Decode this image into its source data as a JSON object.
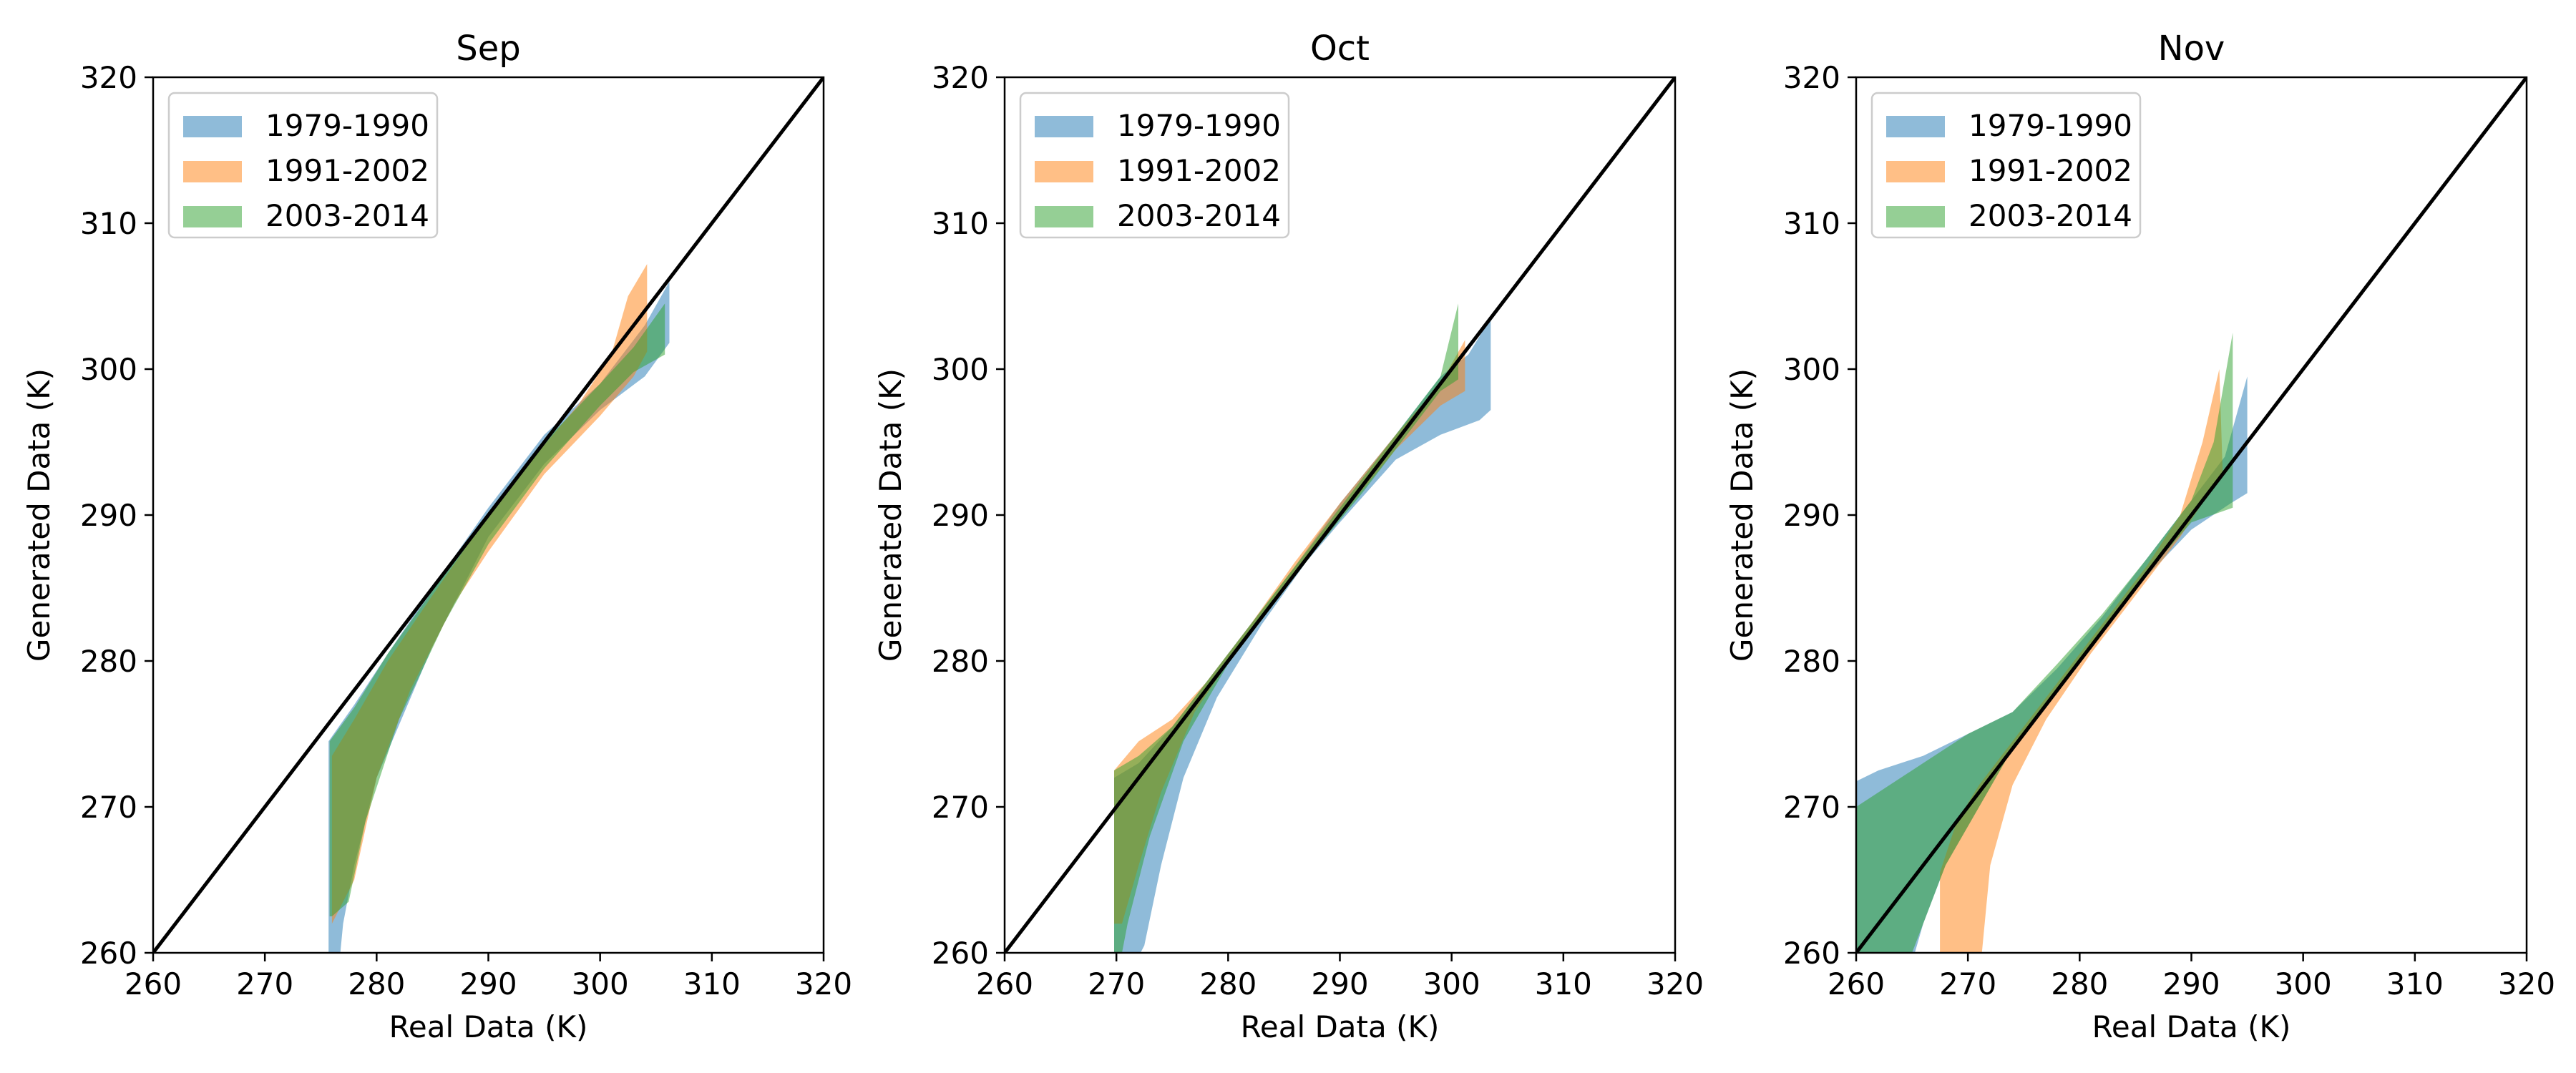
{
  "figure": {
    "xlabel": "Real Data (K)",
    "ylabel": "Generated Data (K)"
  },
  "colors": {
    "1979-1990": "#1f77b4",
    "1991-2002": "#ff7f0e",
    "2003-2014": "#2ca02c",
    "identity_line": "#000000"
  },
  "chart_data": [
    {
      "type": "area",
      "title": "Sep",
      "xlabel": "Real Data (K)",
      "ylabel": "Generated Data (K)",
      "xlim": [
        260,
        320
      ],
      "ylim": [
        260,
        320
      ],
      "xticks": [
        260,
        270,
        280,
        290,
        300,
        310,
        320
      ],
      "yticks": [
        260,
        270,
        280,
        290,
        300,
        310,
        320
      ],
      "legend": "top-left",
      "reference_line": "y = x",
      "series": [
        {
          "name": "1979-1990",
          "upper": [
            [
              275.7,
              258
            ],
            [
              275.7,
              274.5
            ],
            [
              278,
              277
            ],
            [
              281,
              280.5
            ],
            [
              285,
              285
            ],
            [
              290,
              290.5
            ],
            [
              295,
              295.5
            ],
            [
              300,
              299
            ],
            [
              304,
              303
            ],
            [
              306.2,
              306
            ]
          ],
          "lower": [
            [
              276.5,
              258
            ],
            [
              277,
              262
            ],
            [
              278,
              266
            ],
            [
              280,
              272
            ],
            [
              285,
              281
            ],
            [
              290,
              288.5
            ],
            [
              295,
              293.5
            ],
            [
              300,
              297.2
            ],
            [
              304,
              299.5
            ],
            [
              306.2,
              301.8
            ]
          ]
        },
        {
          "name": "1991-2002",
          "upper": [
            [
              276,
              262
            ],
            [
              276,
              273.5
            ],
            [
              278,
              276
            ],
            [
              281,
              280
            ],
            [
              285,
              284.5
            ],
            [
              290,
              290
            ],
            [
              295,
              294.8
            ],
            [
              298,
              297.5
            ],
            [
              301,
              301
            ],
            [
              302.5,
              305
            ],
            [
              304.2,
              307.2
            ]
          ],
          "lower": [
            [
              276,
              262
            ],
            [
              278,
              265
            ],
            [
              280,
              272
            ],
            [
              283,
              278
            ],
            [
              287,
              284
            ],
            [
              290,
              287.5
            ],
            [
              295,
              292.8
            ],
            [
              300,
              296.8
            ],
            [
              303,
              299.5
            ],
            [
              304.2,
              301.2
            ]
          ]
        },
        {
          "name": "2003-2014",
          "upper": [
            [
              275.8,
              262.5
            ],
            [
              275.8,
              274.5
            ],
            [
              278,
              276.8
            ],
            [
              281,
              280.5
            ],
            [
              285,
              284.8
            ],
            [
              290,
              290.2
            ],
            [
              295,
              295
            ],
            [
              300,
              299
            ],
            [
              303,
              301.5
            ],
            [
              305.8,
              304.5
            ]
          ],
          "lower": [
            [
              276,
              262.5
            ],
            [
              277.5,
              263.5
            ],
            [
              279,
              269
            ],
            [
              282,
              276
            ],
            [
              286,
              282.5
            ],
            [
              290,
              288
            ],
            [
              295,
              293.2
            ],
            [
              300,
              297.5
            ],
            [
              303,
              299.8
            ],
            [
              305.8,
              301
            ]
          ]
        }
      ]
    },
    {
      "type": "area",
      "title": "Oct",
      "xlabel": "Real Data (K)",
      "ylabel": "Generated Data (K)",
      "xlim": [
        260,
        320
      ],
      "ylim": [
        260,
        320
      ],
      "xticks": [
        260,
        270,
        280,
        290,
        300,
        310,
        320
      ],
      "yticks": [
        260,
        270,
        280,
        290,
        300,
        310,
        320
      ],
      "legend": "top-left",
      "reference_line": "y = x",
      "series": [
        {
          "name": "1979-1990",
          "upper": [
            [
              269.8,
              258
            ],
            [
              269.8,
              272
            ],
            [
              272,
              273
            ],
            [
              275,
              275.5
            ],
            [
              278,
              278.5
            ],
            [
              282,
              282.5
            ],
            [
              286,
              286.5
            ],
            [
              290,
              290.8
            ],
            [
              295,
              295.5
            ],
            [
              299,
              299.5
            ],
            [
              301.5,
              301
            ],
            [
              303.5,
              303.5
            ]
          ],
          "lower": [
            [
              270.8,
              258
            ],
            [
              272.5,
              260.5
            ],
            [
              274,
              266
            ],
            [
              276,
              272
            ],
            [
              279,
              277.5
            ],
            [
              283,
              282.5
            ],
            [
              287,
              286.8
            ],
            [
              290,
              289.5
            ],
            [
              295,
              293.8
            ],
            [
              299,
              295.5
            ],
            [
              302.5,
              296.5
            ],
            [
              303.5,
              297.2
            ]
          ]
        },
        {
          "name": "1991-2002",
          "upper": [
            [
              269.8,
              262
            ],
            [
              269.8,
              272.5
            ],
            [
              272,
              274.5
            ],
            [
              275,
              276
            ],
            [
              278,
              278.5
            ],
            [
              282,
              282.5
            ],
            [
              286,
              286.8
            ],
            [
              290,
              290.8
            ],
            [
              295,
              295.5
            ],
            [
              299,
              299
            ],
            [
              301.2,
              302
            ]
          ],
          "lower": [
            [
              270.5,
              262
            ],
            [
              272,
              266
            ],
            [
              274,
              271
            ],
            [
              277,
              276.5
            ],
            [
              281,
              281
            ],
            [
              285,
              285
            ],
            [
              290,
              289.8
            ],
            [
              295,
              294.5
            ],
            [
              299,
              297.5
            ],
            [
              301.2,
              298.5
            ]
          ]
        },
        {
          "name": "2003-2014",
          "upper": [
            [
              269.8,
              258
            ],
            [
              269.8,
              272.5
            ],
            [
              272,
              273.5
            ],
            [
              275,
              275.5
            ],
            [
              278,
              278.5
            ],
            [
              282,
              282.5
            ],
            [
              286,
              286.5
            ],
            [
              290,
              290.5
            ],
            [
              295,
              295.5
            ],
            [
              299,
              299.5
            ],
            [
              300.6,
              304.5
            ]
          ],
          "lower": [
            [
              270,
              258
            ],
            [
              271,
              262
            ],
            [
              273,
              268
            ],
            [
              276,
              274.5
            ],
            [
              280,
              279.8
            ],
            [
              284,
              283.8
            ],
            [
              288,
              287.8
            ],
            [
              292,
              291.5
            ],
            [
              296,
              295.5
            ],
            [
              299,
              298.5
            ],
            [
              300.6,
              299.3
            ]
          ]
        }
      ]
    },
    {
      "type": "area",
      "title": "Nov",
      "xlabel": "Real Data (K)",
      "ylabel": "Generated Data (K)",
      "xlim": [
        260,
        320
      ],
      "ylim": [
        260,
        320
      ],
      "xticks": [
        260,
        270,
        280,
        290,
        300,
        310,
        320
      ],
      "yticks": [
        260,
        270,
        280,
        290,
        300,
        310,
        320
      ],
      "legend": "top-left",
      "reference_line": "y = x",
      "series": [
        {
          "name": "1979-1990",
          "upper": [
            [
              258,
              271
            ],
            [
              262,
              272.5
            ],
            [
              266,
              273.5
            ],
            [
              270,
              275
            ],
            [
              274,
              276.5
            ],
            [
              278,
              279.5
            ],
            [
              282,
              283
            ],
            [
              286,
              287
            ],
            [
              290,
              291
            ],
            [
              293,
              294
            ],
            [
              295,
              299.5
            ]
          ],
          "lower": [
            [
              258,
              258
            ],
            [
              262,
              258
            ],
            [
              264.5,
              258
            ],
            [
              266,
              262
            ],
            [
              268,
              266
            ],
            [
              271,
              270
            ],
            [
              274,
              274
            ],
            [
              278,
              278
            ],
            [
              282,
              282
            ],
            [
              286,
              285.8
            ],
            [
              290,
              289
            ],
            [
              293.5,
              290.8
            ],
            [
              295,
              291.5
            ]
          ]
        },
        {
          "name": "1991-2002",
          "upper": [
            [
              267.5,
              258
            ],
            [
              267.5,
              265.5
            ],
            [
              269,
              269
            ],
            [
              271,
              271.5
            ],
            [
              274,
              274.5
            ],
            [
              278,
              278.5
            ],
            [
              282,
              282.5
            ],
            [
              286,
              286.5
            ],
            [
              289,
              290
            ],
            [
              291,
              295
            ],
            [
              292.5,
              300
            ]
          ],
          "lower": [
            [
              271,
              258
            ],
            [
              272,
              266
            ],
            [
              274,
              271.5
            ],
            [
              277,
              276
            ],
            [
              281,
              280.5
            ],
            [
              285,
              284.5
            ],
            [
              289,
              288.5
            ],
            [
              292,
              292
            ],
            [
              292.8,
              293
            ]
          ]
        },
        {
          "name": "2003-2014",
          "upper": [
            [
              258,
              258
            ],
            [
              258,
              269
            ],
            [
              262,
              271
            ],
            [
              266,
              273
            ],
            [
              270,
              275
            ],
            [
              274,
              276.5
            ],
            [
              278,
              279.8
            ],
            [
              282,
              283.2
            ],
            [
              286,
              287
            ],
            [
              290,
              291
            ],
            [
              292,
              295
            ],
            [
              293.7,
              302.5
            ]
          ],
          "lower": [
            [
              258,
              258
            ],
            [
              264,
              258
            ],
            [
              266,
              262
            ],
            [
              268,
              266
            ],
            [
              271,
              270
            ],
            [
              274,
              274
            ],
            [
              278,
              278
            ],
            [
              282,
              282
            ],
            [
              286,
              286
            ],
            [
              290,
              289.5
            ],
            [
              293.7,
              290.5
            ]
          ]
        }
      ]
    }
  ]
}
